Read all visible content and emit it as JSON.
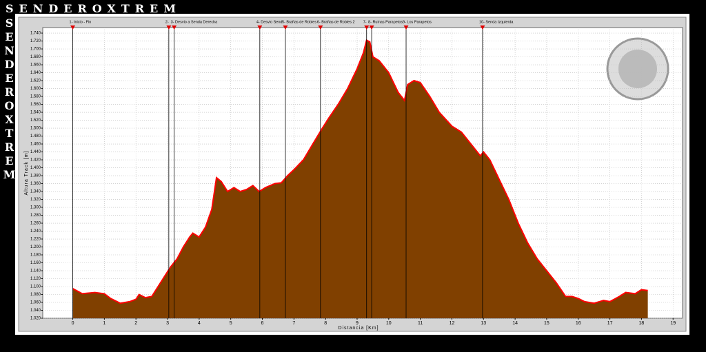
{
  "brand": "SENDEROXTREM",
  "side_brand": "SENDEROXTREM",
  "chart_data": {
    "type": "area",
    "ylabel": "Altura Track [m]",
    "xlabel": "Distancia [Km]",
    "xlim": [
      -0.95,
      19.3
    ],
    "ylim": [
      1020,
      1754
    ],
    "xticks": [
      0,
      1,
      2,
      3,
      4,
      5,
      6,
      7,
      8,
      9,
      10,
      11,
      12,
      13,
      14,
      15,
      16,
      17,
      18,
      19
    ],
    "yticks": [
      {
        "value": 1020,
        "label": "1.020"
      },
      {
        "value": 1040,
        "label": "1.040"
      },
      {
        "value": 1060,
        "label": "1.060"
      },
      {
        "value": 1080,
        "label": "1.080"
      },
      {
        "value": 1100,
        "label": "1.100"
      },
      {
        "value": 1120,
        "label": "1.120"
      },
      {
        "value": 1140,
        "label": "1.140"
      },
      {
        "value": 1160,
        "label": "1.160"
      },
      {
        "value": 1180,
        "label": "1.180"
      },
      {
        "value": 1200,
        "label": "1.200"
      },
      {
        "value": 1220,
        "label": "1.220"
      },
      {
        "value": 1240,
        "label": "1.240"
      },
      {
        "value": 1260,
        "label": "1.260"
      },
      {
        "value": 1280,
        "label": "1.280"
      },
      {
        "value": 1300,
        "label": "1.300"
      },
      {
        "value": 1320,
        "label": "1.320"
      },
      {
        "value": 1340,
        "label": "1.340"
      },
      {
        "value": 1360,
        "label": "1.360"
      },
      {
        "value": 1380,
        "label": "1.380"
      },
      {
        "value": 1400,
        "label": "1.400"
      },
      {
        "value": 1420,
        "label": "1.420"
      },
      {
        "value": 1440,
        "label": "1.440"
      },
      {
        "value": 1460,
        "label": "1.460"
      },
      {
        "value": 1480,
        "label": "1.480"
      },
      {
        "value": 1500,
        "label": "1.500"
      },
      {
        "value": 1520,
        "label": "1.520"
      },
      {
        "value": 1540,
        "label": "1.540"
      },
      {
        "value": 1560,
        "label": "1.560"
      },
      {
        "value": 1580,
        "label": "1.580"
      },
      {
        "value": 1600,
        "label": "1.600"
      },
      {
        "value": 1620,
        "label": "1.620"
      },
      {
        "value": 1640,
        "label": "1.640"
      },
      {
        "value": 1660,
        "label": "1.660"
      },
      {
        "value": 1680,
        "label": "1.680"
      },
      {
        "value": 1700,
        "label": "1.700"
      },
      {
        "value": 1720,
        "label": "1.720"
      },
      {
        "value": 1740,
        "label": "1.740"
      }
    ],
    "grid": true,
    "x": [
      0,
      0.3,
      0.7,
      1.0,
      1.2,
      1.5,
      1.8,
      2.0,
      2.1,
      2.3,
      2.5,
      2.7,
      2.9,
      3.1,
      3.3,
      3.5,
      3.7,
      3.8,
      4.0,
      4.2,
      4.4,
      4.55,
      4.7,
      4.9,
      5.1,
      5.3,
      5.5,
      5.7,
      5.9,
      6.1,
      6.4,
      6.6,
      6.8,
      7.0,
      7.3,
      7.6,
      7.9,
      8.1,
      8.4,
      8.7,
      9.0,
      9.2,
      9.3,
      9.4,
      9.5,
      9.7,
      10.0,
      10.3,
      10.5,
      10.6,
      10.8,
      11.0,
      11.3,
      11.6,
      12.0,
      12.3,
      12.6,
      12.9,
      13.0,
      13.2,
      13.5,
      13.8,
      14.1,
      14.4,
      14.7,
      15.0,
      15.3,
      15.6,
      15.8,
      16.0,
      16.2,
      16.5,
      16.8,
      17.0,
      17.3,
      17.5,
      17.8,
      18.0,
      18.2
    ],
    "series": [
      {
        "color": "#804000",
        "line_color": "#ff0000",
        "values": [
          1095,
          1082,
          1085,
          1082,
          1070,
          1058,
          1062,
          1068,
          1080,
          1072,
          1075,
          1100,
          1125,
          1150,
          1170,
          1200,
          1225,
          1235,
          1225,
          1250,
          1295,
          1375,
          1365,
          1340,
          1350,
          1340,
          1345,
          1355,
          1340,
          1350,
          1360,
          1362,
          1380,
          1395,
          1420,
          1460,
          1500,
          1525,
          1560,
          1600,
          1650,
          1690,
          1722,
          1718,
          1680,
          1670,
          1640,
          1590,
          1570,
          1610,
          1620,
          1615,
          1580,
          1540,
          1505,
          1490,
          1460,
          1430,
          1440,
          1420,
          1370,
          1320,
          1260,
          1210,
          1170,
          1140,
          1110,
          1075,
          1075,
          1070,
          1062,
          1058,
          1065,
          1062,
          1075,
          1085,
          1082,
          1092,
          1090
        ]
      }
    ],
    "waypoints": [
      {
        "x": 0,
        "label": "1- Inicio - Fin"
      },
      {
        "x": 3.04,
        "label": "2-"
      },
      {
        "x": 3.21,
        "label": "3- Desvio a Senda Derecha"
      },
      {
        "x": 5.92,
        "label": "4- Desvio Send"
      },
      {
        "x": 6.73,
        "label": "5- Brañas de Robles"
      },
      {
        "x": 7.84,
        "label": "6- Brañas de Robles 2"
      },
      {
        "x": 9.3,
        "label": "7-"
      },
      {
        "x": 9.46,
        "label": "8- Ruinas Parapetos"
      },
      {
        "x": 10.55,
        "label": "9- Los Parapetos"
      },
      {
        "x": 12.97,
        "label": "10- Senda Izquierda"
      }
    ]
  }
}
